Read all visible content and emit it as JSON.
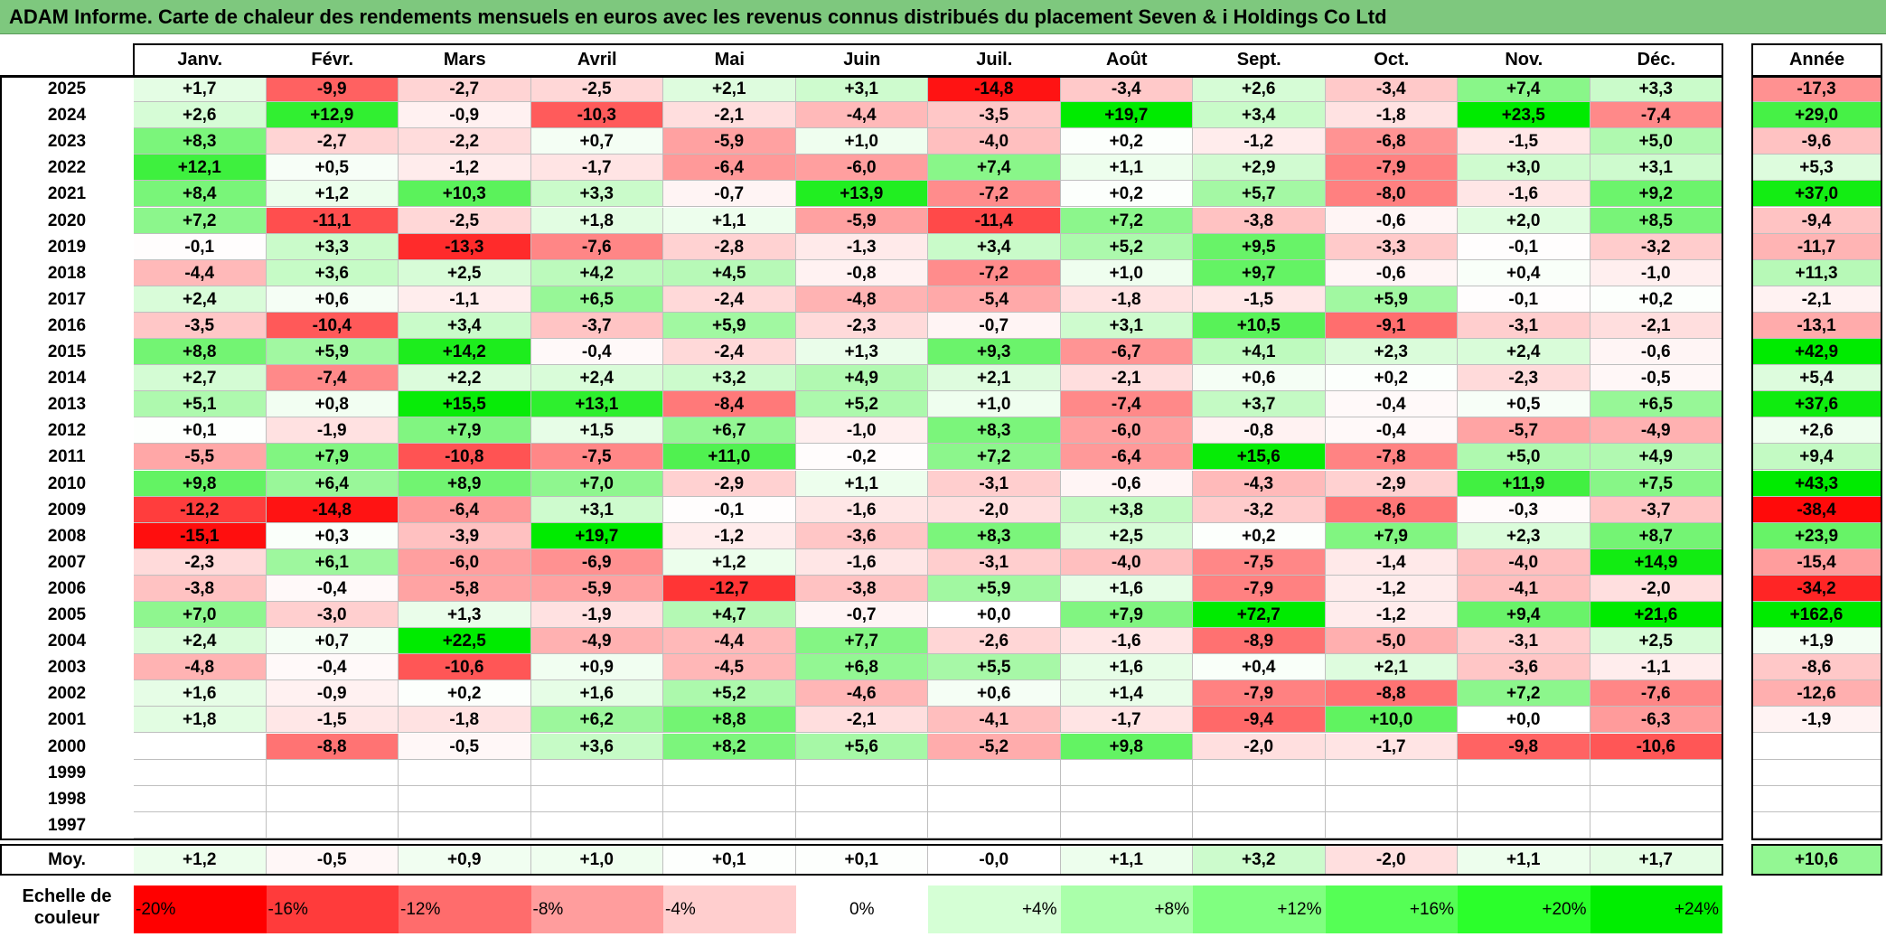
{
  "title": "ADAM Informe. Carte de chaleur des rendements mensuels en euros avec les revenus connus distribués du placement Seven & i Holdings Co Ltd",
  "chart_data": {
    "type": "heatmap",
    "title": "ADAM Informe. Carte de chaleur des rendements mensuels en euros avec les revenus connus distribués du placement Seven & i Holdings Co Ltd",
    "columns": [
      "Janv.",
      "Févr.",
      "Mars",
      "Avril",
      "Mai",
      "Juin",
      "Juil.",
      "Août",
      "Sept.",
      "Oct.",
      "Nov.",
      "Déc."
    ],
    "year_header": "Année",
    "rows": [
      {
        "year": "2025",
        "values": [
          "+1,7",
          "-9,9",
          "-2,7",
          "-2,5",
          "+2,1",
          "+3,1",
          "-14,8",
          "-3,4",
          "+2,6",
          "-3,4",
          "+7,4",
          "+3,3"
        ],
        "annual": "-17,3"
      },
      {
        "year": "2024",
        "values": [
          "+2,6",
          "+12,9",
          "-0,9",
          "-10,3",
          "-2,1",
          "-4,4",
          "-3,5",
          "+19,7",
          "+3,4",
          "-1,8",
          "+23,5",
          "-7,4"
        ],
        "annual": "+29,0"
      },
      {
        "year": "2023",
        "values": [
          "+8,3",
          "-2,7",
          "-2,2",
          "+0,7",
          "-5,9",
          "+1,0",
          "-4,0",
          "+0,2",
          "-1,2",
          "-6,8",
          "-1,5",
          "+5,0"
        ],
        "annual": "-9,6"
      },
      {
        "year": "2022",
        "values": [
          "+12,1",
          "+0,5",
          "-1,2",
          "-1,7",
          "-6,4",
          "-6,0",
          "+7,4",
          "+1,1",
          "+2,9",
          "-7,9",
          "+3,0",
          "+3,1"
        ],
        "annual": "+5,3"
      },
      {
        "year": "2021",
        "values": [
          "+8,4",
          "+1,2",
          "+10,3",
          "+3,3",
          "-0,7",
          "+13,9",
          "-7,2",
          "+0,2",
          "+5,7",
          "-8,0",
          "-1,6",
          "+9,2"
        ],
        "annual": "+37,0"
      },
      {
        "year": "2020",
        "values": [
          "+7,2",
          "-11,1",
          "-2,5",
          "+1,8",
          "+1,1",
          "-5,9",
          "-11,4",
          "+7,2",
          "-3,8",
          "-0,6",
          "+2,0",
          "+8,5"
        ],
        "annual": "-9,4"
      },
      {
        "year": "2019",
        "values": [
          "-0,1",
          "+3,3",
          "-13,3",
          "-7,6",
          "-2,8",
          "-1,3",
          "+3,4",
          "+5,2",
          "+9,5",
          "-3,3",
          "-0,1",
          "-3,2"
        ],
        "annual": "-11,7"
      },
      {
        "year": "2018",
        "values": [
          "-4,4",
          "+3,6",
          "+2,5",
          "+4,2",
          "+4,5",
          "-0,8",
          "-7,2",
          "+1,0",
          "+9,7",
          "-0,6",
          "+0,4",
          "-1,0"
        ],
        "annual": "+11,3"
      },
      {
        "year": "2017",
        "values": [
          "+2,4",
          "+0,6",
          "-1,1",
          "+6,5",
          "-2,4",
          "-4,8",
          "-5,4",
          "-1,8",
          "-1,5",
          "+5,9",
          "-0,1",
          "+0,2"
        ],
        "annual": "-2,1"
      },
      {
        "year": "2016",
        "values": [
          "-3,5",
          "-10,4",
          "+3,4",
          "-3,7",
          "+5,9",
          "-2,3",
          "-0,7",
          "+3,1",
          "+10,5",
          "-9,1",
          "-3,1",
          "-2,1"
        ],
        "annual": "-13,1"
      },
      {
        "year": "2015",
        "values": [
          "+8,8",
          "+5,9",
          "+14,2",
          "-0,4",
          "-2,4",
          "+1,3",
          "+9,3",
          "-6,7",
          "+4,1",
          "+2,3",
          "+2,4",
          "-0,6"
        ],
        "annual": "+42,9"
      },
      {
        "year": "2014",
        "values": [
          "+2,7",
          "-7,4",
          "+2,2",
          "+2,4",
          "+3,2",
          "+4,9",
          "+2,1",
          "-2,1",
          "+0,6",
          "+0,2",
          "-2,3",
          "-0,5"
        ],
        "annual": "+5,4"
      },
      {
        "year": "2013",
        "values": [
          "+5,1",
          "+0,8",
          "+15,5",
          "+13,1",
          "-8,4",
          "+5,2",
          "+1,0",
          "-7,4",
          "+3,7",
          "-0,4",
          "+0,5",
          "+6,5"
        ],
        "annual": "+37,6"
      },
      {
        "year": "2012",
        "values": [
          "+0,1",
          "-1,9",
          "+7,9",
          "+1,5",
          "+6,7",
          "-1,0",
          "+8,3",
          "-6,0",
          "-0,8",
          "-0,4",
          "-5,7",
          "-4,9"
        ],
        "annual": "+2,6"
      },
      {
        "year": "2011",
        "values": [
          "-5,5",
          "+7,9",
          "-10,8",
          "-7,5",
          "+11,0",
          "-0,2",
          "+7,2",
          "-6,4",
          "+15,6",
          "-7,8",
          "+5,0",
          "+4,9"
        ],
        "annual": "+9,4"
      },
      {
        "year": "2010",
        "values": [
          "+9,8",
          "+6,4",
          "+8,9",
          "+7,0",
          "-2,9",
          "+1,1",
          "-3,1",
          "-0,6",
          "-4,3",
          "-2,9",
          "+11,9",
          "+7,5"
        ],
        "annual": "+43,3"
      },
      {
        "year": "2009",
        "values": [
          "-12,2",
          "-14,8",
          "-6,4",
          "+3,1",
          "-0,1",
          "-1,6",
          "-2,0",
          "+3,8",
          "-3,2",
          "-8,6",
          "-0,3",
          "-3,7"
        ],
        "annual": "-38,4"
      },
      {
        "year": "2008",
        "values": [
          "-15,1",
          "+0,3",
          "-3,9",
          "+19,7",
          "-1,2",
          "-3,6",
          "+8,3",
          "+2,5",
          "+0,2",
          "+7,9",
          "+2,3",
          "+8,7"
        ],
        "annual": "+23,9"
      },
      {
        "year": "2007",
        "values": [
          "-2,3",
          "+6,1",
          "-6,0",
          "-6,9",
          "+1,2",
          "-1,6",
          "-3,1",
          "-4,0",
          "-7,5",
          "-1,4",
          "-4,0",
          "+14,9"
        ],
        "annual": "-15,4"
      },
      {
        "year": "2006",
        "values": [
          "-3,8",
          "-0,4",
          "-5,8",
          "-5,9",
          "-12,7",
          "-3,8",
          "+5,9",
          "+1,6",
          "-7,9",
          "-1,2",
          "-4,1",
          "-2,0"
        ],
        "annual": "-34,2"
      },
      {
        "year": "2005",
        "values": [
          "+7,0",
          "-3,0",
          "+1,3",
          "-1,9",
          "+4,7",
          "-0,7",
          "+0,0",
          "+7,9",
          "+72,7",
          "-1,2",
          "+9,4",
          "+21,6"
        ],
        "annual": "+162,6"
      },
      {
        "year": "2004",
        "values": [
          "+2,4",
          "+0,7",
          "+22,5",
          "-4,9",
          "-4,4",
          "+7,7",
          "-2,6",
          "-1,6",
          "-8,9",
          "-5,0",
          "-3,1",
          "+2,5"
        ],
        "annual": "+1,9"
      },
      {
        "year": "2003",
        "values": [
          "-4,8",
          "-0,4",
          "-10,6",
          "+0,9",
          "-4,5",
          "+6,8",
          "+5,5",
          "+1,6",
          "+0,4",
          "+2,1",
          "-3,6",
          "-1,1"
        ],
        "annual": "-8,6"
      },
      {
        "year": "2002",
        "values": [
          "+1,6",
          "-0,9",
          "+0,2",
          "+1,6",
          "+5,2",
          "-4,6",
          "+0,6",
          "+1,4",
          "-7,9",
          "-8,8",
          "+7,2",
          "-7,6"
        ],
        "annual": "-12,6"
      },
      {
        "year": "2001",
        "values": [
          "+1,8",
          "-1,5",
          "-1,8",
          "+6,2",
          "+8,8",
          "-2,1",
          "-4,1",
          "-1,7",
          "-9,4",
          "+10,0",
          "+0,0",
          "-6,3"
        ],
        "annual": "-1,9"
      },
      {
        "year": "2000",
        "values": [
          "",
          "-8,8",
          "-0,5",
          "+3,6",
          "+8,2",
          "+5,6",
          "-5,2",
          "+9,8",
          "-2,0",
          "-1,7",
          "-9,8",
          "-10,6"
        ],
        "annual": ""
      },
      {
        "year": "1999",
        "values": [
          "",
          "",
          "",
          "",
          "",
          "",
          "",
          "",
          "",
          "",
          "",
          ""
        ],
        "annual": ""
      },
      {
        "year": "1998",
        "values": [
          "",
          "",
          "",
          "",
          "",
          "",
          "",
          "",
          "",
          "",
          "",
          ""
        ],
        "annual": ""
      },
      {
        "year": "1997",
        "values": [
          "",
          "",
          "",
          "",
          "",
          "",
          "",
          "",
          "",
          "",
          "",
          ""
        ],
        "annual": ""
      }
    ],
    "average": {
      "label": "Moy.",
      "values": [
        "+1,2",
        "-0,5",
        "+0,9",
        "+1,0",
        "+0,1",
        "+0,1",
        "-0,0",
        "+1,1",
        "+3,2",
        "-2,0",
        "+1,1",
        "+1,7"
      ],
      "annual": "+10,6"
    },
    "scale": {
      "label_line1": "Echelle de",
      "label_line2": "couleur",
      "items": [
        {
          "label": "-20%",
          "value": -20,
          "color": "#ff0000"
        },
        {
          "label": "-16%",
          "value": -16,
          "color": "#ff3b3b"
        },
        {
          "label": "-12%",
          "value": -12,
          "color": "#ff6c6c"
        },
        {
          "label": "-8%",
          "value": -8,
          "color": "#ff9d9d"
        },
        {
          "label": "-4%",
          "value": -4,
          "color": "#ffcece"
        },
        {
          "label": "0%",
          "value": 0,
          "color": "#ffffff"
        },
        {
          "label": "+4%",
          "value": 4,
          "color": "#d5ffd5"
        },
        {
          "label": "+8%",
          "value": 8,
          "color": "#aaffaa"
        },
        {
          "label": "+12%",
          "value": 12,
          "color": "#80ff80"
        },
        {
          "label": "+16%",
          "value": 16,
          "color": "#55ff55"
        },
        {
          "label": "+20%",
          "value": 20,
          "color": "#2bff2b"
        },
        {
          "label": "+24%",
          "value": 24,
          "color": "#00ee00"
        }
      ]
    }
  }
}
